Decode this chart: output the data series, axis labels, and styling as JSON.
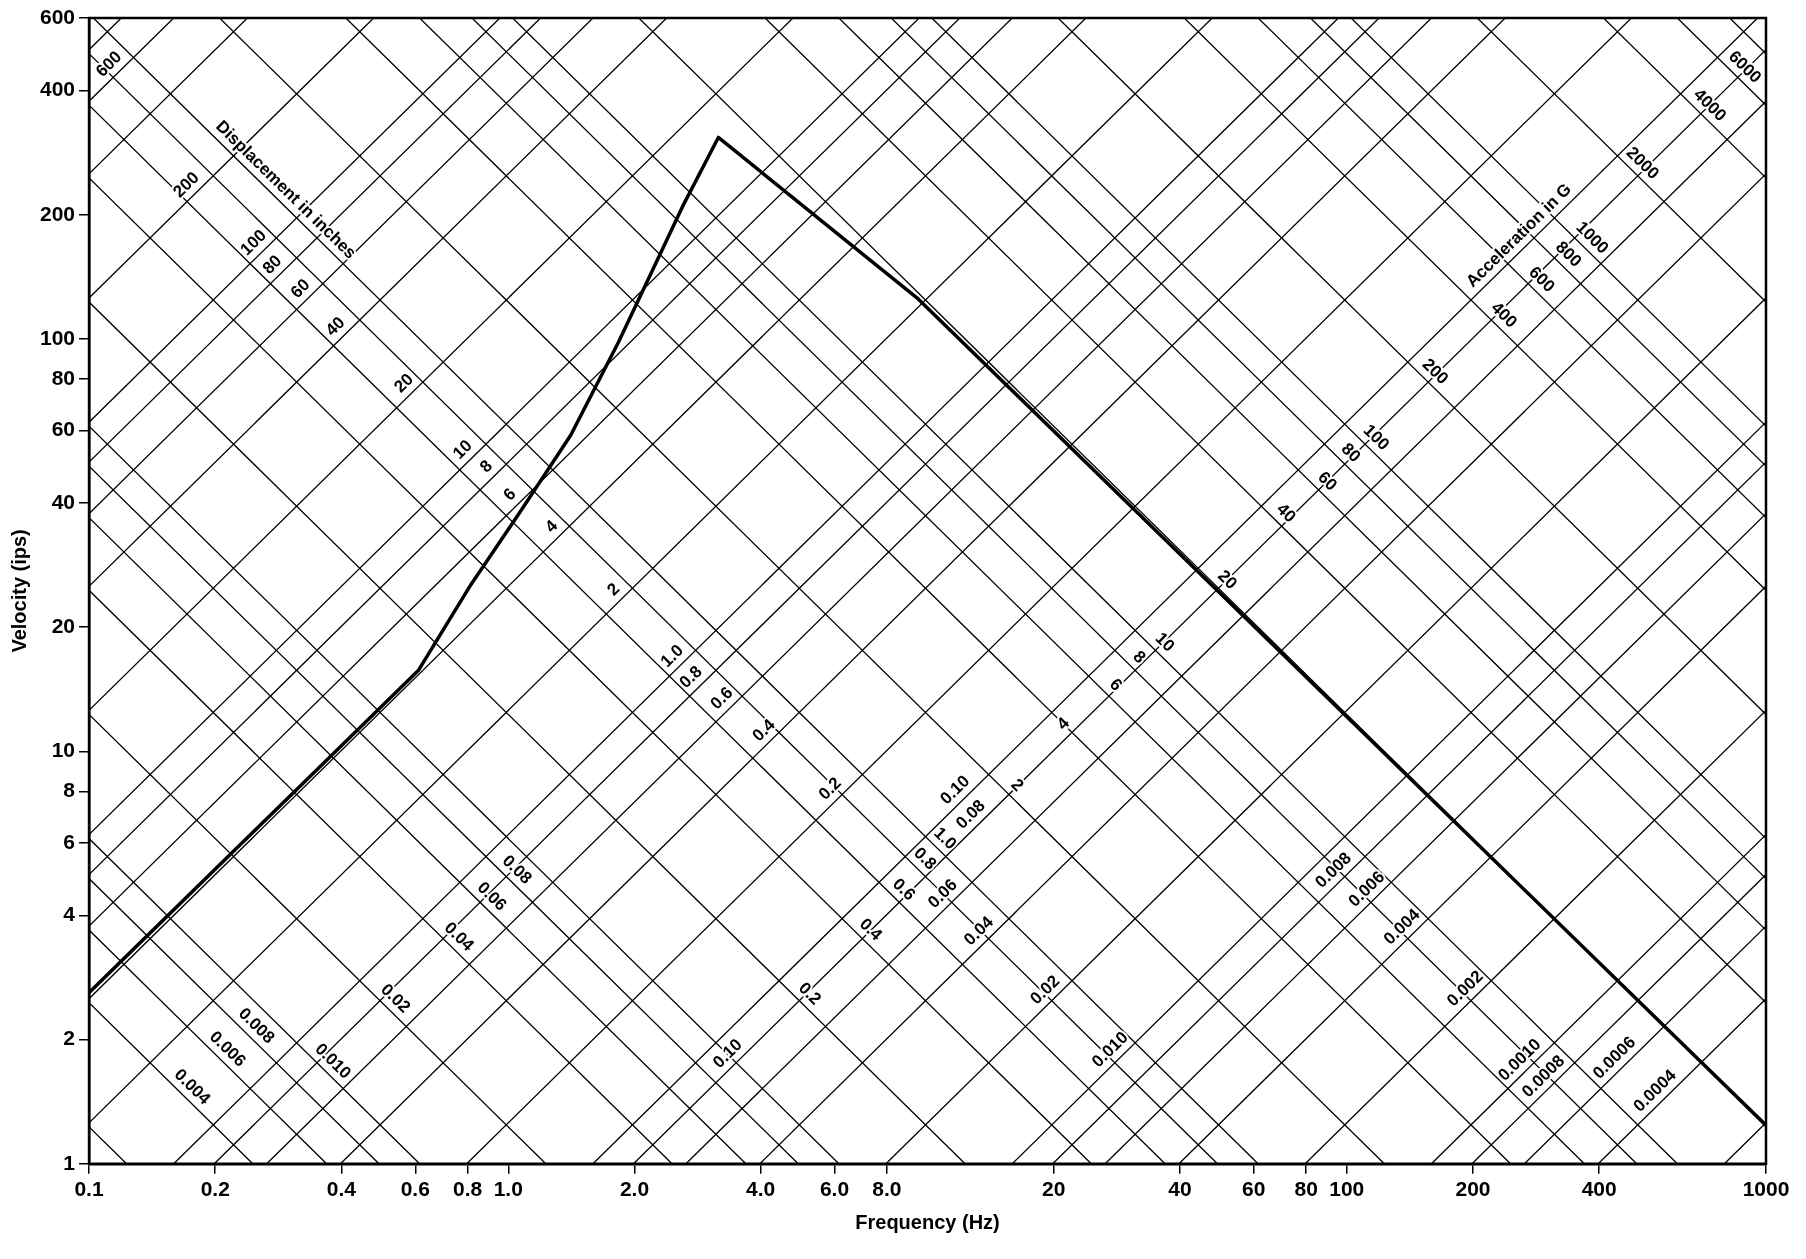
{
  "chart_data": {
    "type": "line",
    "xlabel": "Frequency (Hz)",
    "ylabel": "Velocity (ips)",
    "log": "xy",
    "grid": false,
    "legend": false,
    "marker": "none",
    "line_style": "solid",
    "xlim": [
      0.1,
      1000
    ],
    "ylim": [
      1,
      600
    ],
    "xticks": [
      0.1,
      0.2,
      0.4,
      {
        "value": 0.6,
        "label": "0.6"
      },
      {
        "value": 0.8,
        "label": "0.8"
      },
      {
        "value": 1,
        "label": "1.0"
      },
      {
        "value": 2,
        "label": "2.0"
      },
      {
        "value": 4,
        "label": "4.0"
      },
      {
        "value": 6,
        "label": "6.0"
      },
      {
        "value": 8,
        "label": "8.0"
      },
      20,
      40,
      60,
      80,
      100,
      200,
      400,
      1000
    ],
    "yticks": [
      1,
      2,
      4,
      6,
      8,
      10,
      20,
      40,
      60,
      80,
      100,
      200,
      400,
      600
    ],
    "series": [
      {
        "color": "#000000",
        "x": [
          0.1,
          0.61,
          0.815,
          1.055,
          1.41,
          1.83,
          2.62,
          3.17,
          9.5,
          1000
        ],
        "values": [
          2.6,
          15.7,
          25.4,
          37.4,
          58.5,
          98,
          212,
          308,
          125,
          1.24
        ]
      },
      {
        "color": "#000000",
        "x": [
          795.8,
          1000
        ],
        "values": [
          1,
          1.257
        ]
      },
      {
        "color": "#000000",
        "x": [
          397.9,
          1000
        ],
        "values": [
          1,
          2.513
        ]
      },
      {
        "color": "#000000",
        "x": [
          265.3,
          1000
        ],
        "values": [
          1,
          3.77
        ]
      },
      {
        "color": "#000000",
        "x": [
          198.9,
          1000
        ],
        "values": [
          1,
          5.027
        ]
      },
      {
        "color": "#000000",
        "x": [
          159.2,
          1000
        ],
        "values": [
          1,
          6.283
        ]
      },
      {
        "color": "#000000",
        "x": [
          79.58,
          1000
        ],
        "values": [
          1,
          12.57
        ]
      },
      {
        "color": "#000000",
        "x": [
          39.79,
          1000
        ],
        "values": [
          1,
          25.13
        ]
      },
      {
        "color": "#000000",
        "x": [
          26.53,
          1000
        ],
        "values": [
          1,
          37.7
        ]
      },
      {
        "color": "#000000",
        "x": [
          19.89,
          1000
        ],
        "values": [
          1,
          50.27
        ]
      },
      {
        "color": "#000000",
        "x": [
          15.92,
          1000
        ],
        "values": [
          1,
          62.83
        ]
      },
      {
        "color": "#000000",
        "x": [
          7.958,
          1000
        ],
        "values": [
          1,
          125.7
        ]
      },
      {
        "color": "#000000",
        "x": [
          3.979,
          1000
        ],
        "values": [
          1,
          251.3
        ]
      },
      {
        "color": "#000000",
        "x": [
          2.653,
          1000
        ],
        "values": [
          1,
          377.0
        ]
      },
      {
        "color": "#000000",
        "x": [
          1.989,
          1000
        ],
        "values": [
          1,
          502.7
        ]
      },
      {
        "color": "#000000",
        "x": [
          1.592,
          954.9
        ],
        "values": [
          1,
          600
        ]
      },
      {
        "color": "#000000",
        "x": [
          0.7958,
          477.5
        ],
        "values": [
          1,
          600
        ]
      },
      {
        "color": "#000000",
        "x": [
          0.3979,
          238.7
        ],
        "values": [
          1,
          600
        ]
      },
      {
        "color": "#000000",
        "x": [
          0.2653,
          159.2
        ],
        "values": [
          1,
          600
        ]
      },
      {
        "color": "#000000",
        "x": [
          0.1989,
          119.4
        ],
        "values": [
          1,
          600
        ]
      },
      {
        "color": "#000000",
        "x": [
          0.1592,
          95.49
        ],
        "values": [
          1,
          600
        ]
      },
      {
        "color": "#000000",
        "x": [
          0.1,
          47.75
        ],
        "values": [
          1.257,
          600
        ]
      },
      {
        "color": "#000000",
        "x": [
          0.1,
          23.87
        ],
        "values": [
          2.513,
          600
        ]
      },
      {
        "color": "#000000",
        "x": [
          0.1,
          15.92
        ],
        "values": [
          3.77,
          600
        ]
      },
      {
        "color": "#000000",
        "x": [
          0.1,
          11.94
        ],
        "values": [
          5.027,
          600
        ]
      },
      {
        "color": "#000000",
        "x": [
          0.1,
          9.549
        ],
        "values": [
          6.283,
          600
        ]
      },
      {
        "color": "#000000",
        "x": [
          0.1,
          4.775
        ],
        "values": [
          12.57,
          600
        ]
      },
      {
        "color": "#000000",
        "x": [
          0.1,
          2.387
        ],
        "values": [
          25.13,
          600
        ]
      },
      {
        "color": "#000000",
        "x": [
          0.1,
          1.592
        ],
        "values": [
          37.7,
          600
        ]
      },
      {
        "color": "#000000",
        "x": [
          0.1,
          1.194
        ],
        "values": [
          50.27,
          600
        ]
      },
      {
        "color": "#000000",
        "x": [
          0.1,
          0.9549
        ],
        "values": [
          62.83,
          600
        ]
      },
      {
        "color": "#000000",
        "x": [
          0.1,
          0.4775
        ],
        "values": [
          125.7,
          600
        ]
      },
      {
        "color": "#000000",
        "x": [
          0.1,
          0.2387
        ],
        "values": [
          251.3,
          600
        ]
      },
      {
        "color": "#000000",
        "x": [
          0.1,
          0.1592
        ],
        "values": [
          377.0,
          600
        ]
      },
      {
        "color": "#000000",
        "x": [
          0.1,
          0.1194
        ],
        "values": [
          502.7,
          600
        ]
      },
      {
        "color": "#000000",
        "x": [
          0.1,
          0.1229
        ],
        "values": [
          1.229,
          1
        ]
      },
      {
        "color": "#000000",
        "x": [
          0.1,
          0.2458
        ],
        "values": [
          2.458,
          1
        ]
      },
      {
        "color": "#000000",
        "x": [
          0.1,
          0.3687
        ],
        "values": [
          3.687,
          1
        ]
      },
      {
        "color": "#000000",
        "x": [
          0.1,
          0.4916
        ],
        "values": [
          4.916,
          1
        ]
      },
      {
        "color": "#000000",
        "x": [
          0.1,
          0.6145
        ],
        "values": [
          6.145,
          1
        ]
      },
      {
        "color": "#000000",
        "x": [
          0.1,
          1.229
        ],
        "values": [
          12.29,
          1
        ]
      },
      {
        "color": "#000000",
        "x": [
          0.1,
          2.458
        ],
        "values": [
          24.58,
          1
        ]
      },
      {
        "color": "#000000",
        "x": [
          0.1,
          3.687
        ],
        "values": [
          36.87,
          1
        ]
      },
      {
        "color": "#000000",
        "x": [
          0.1,
          4.916
        ],
        "values": [
          49.16,
          1
        ]
      },
      {
        "color": "#000000",
        "x": [
          0.1,
          6.145
        ],
        "values": [
          61.45,
          1
        ]
      },
      {
        "color": "#000000",
        "x": [
          0.1,
          12.29
        ],
        "values": [
          122.9,
          1
        ]
      },
      {
        "color": "#000000",
        "x": [
          0.1,
          24.58
        ],
        "values": [
          245.8,
          1
        ]
      },
      {
        "color": "#000000",
        "x": [
          0.1,
          36.87
        ],
        "values": [
          368.7,
          1
        ]
      },
      {
        "color": "#000000",
        "x": [
          0.1,
          49.16
        ],
        "values": [
          491.6,
          1
        ]
      },
      {
        "color": "#000000",
        "x": [
          0.1024,
          61.45
        ],
        "values": [
          600,
          1
        ]
      },
      {
        "color": "#000000",
        "x": [
          0.2048,
          122.9
        ],
        "values": [
          600,
          1
        ]
      },
      {
        "color": "#000000",
        "x": [
          0.4097,
          245.8
        ],
        "values": [
          600,
          1
        ]
      },
      {
        "color": "#000000",
        "x": [
          0.6145,
          368.7
        ],
        "values": [
          600,
          1
        ]
      },
      {
        "color": "#000000",
        "x": [
          0.8193,
          491.6
        ],
        "values": [
          600,
          1
        ]
      },
      {
        "color": "#000000",
        "x": [
          1.024,
          614.5
        ],
        "values": [
          600,
          1
        ]
      },
      {
        "color": "#000000",
        "x": [
          2.048,
          1000
        ],
        "values": [
          600,
          1.229
        ]
      },
      {
        "color": "#000000",
        "x": [
          4.097,
          1000
        ],
        "values": [
          600,
          2.458
        ]
      },
      {
        "color": "#000000",
        "x": [
          6.145,
          1000
        ],
        "values": [
          600,
          3.687
        ]
      },
      {
        "color": "#000000",
        "x": [
          8.193,
          1000
        ],
        "values": [
          600,
          4.916
        ]
      },
      {
        "color": "#000000",
        "x": [
          10.24,
          1000
        ],
        "values": [
          600,
          6.145
        ]
      },
      {
        "color": "#000000",
        "x": [
          20.48,
          1000
        ],
        "values": [
          600,
          12.29
        ]
      },
      {
        "color": "#000000",
        "x": [
          40.97,
          1000
        ],
        "values": [
          600,
          24.58
        ]
      },
      {
        "color": "#000000",
        "x": [
          61.45,
          1000
        ],
        "values": [
          600,
          36.87
        ]
      },
      {
        "color": "#000000",
        "x": [
          81.93,
          1000
        ],
        "values": [
          600,
          49.16
        ]
      },
      {
        "color": "#000000",
        "x": [
          102.4,
          1000
        ],
        "values": [
          600,
          61.45
        ]
      },
      {
        "color": "#000000",
        "x": [
          204.8,
          1000
        ],
        "values": [
          600,
          122.9
        ]
      },
      {
        "color": "#000000",
        "x": [
          409.7,
          1000
        ],
        "values": [
          600,
          245.8
        ]
      },
      {
        "color": "#000000",
        "x": [
          614.5,
          1000
        ],
        "values": [
          600,
          368.7
        ]
      },
      {
        "color": "#000000",
        "x": [
          819.3,
          1000
        ],
        "values": [
          600,
          491.6
        ]
      }
    ],
    "annotations": [
      {
        "text": "Displacement in inches",
        "x": 0.281,
        "y": 218.7
      },
      {
        "text": "Acceleration in G",
        "x": 270,
        "y": 169.6
      },
      {
        "text": "600",
        "x": 0.117,
        "y": 441
      },
      {
        "text": "200",
        "x": 0.179,
        "y": 225
      },
      {
        "text": "100",
        "x": 0.259,
        "y": 163
      },
      {
        "text": "80",
        "x": 0.287,
        "y": 144
      },
      {
        "text": "60",
        "x": 0.335,
        "y": 126
      },
      {
        "text": "40",
        "x": 0.406,
        "y": 102
      },
      {
        "text": "20",
        "x": 0.591,
        "y": 74.3
      },
      {
        "text": "10",
        "x": 0.817,
        "y": 51.3
      },
      {
        "text": "8",
        "x": 0.93,
        "y": 46.7
      },
      {
        "text": "6",
        "x": 1.058,
        "y": 39.9
      },
      {
        "text": "4",
        "x": 1.33,
        "y": 33.4
      },
      {
        "text": "2",
        "x": 1.87,
        "y": 23.5
      },
      {
        "text": "1.0",
        "x": 2.58,
        "y": 16.2
      },
      {
        "text": "0.8",
        "x": 2.86,
        "y": 14.4
      },
      {
        "text": "0.6",
        "x": 3.39,
        "y": 12.8
      },
      {
        "text": "0.4",
        "x": 4.27,
        "y": 10.7
      },
      {
        "text": "0.2",
        "x": 6.14,
        "y": 7.72
      },
      {
        "text": "0.10",
        "x": 12.2,
        "y": 7.67
      },
      {
        "text": "0.08",
        "x": 13.3,
        "y": 6.69
      },
      {
        "text": "2",
        "x": 15.6,
        "y": 7.88
      },
      {
        "text": "1.0",
        "x": 10.5,
        "y": 5.85
      },
      {
        "text": "0.8",
        "x": 9.4,
        "y": 5.23
      },
      {
        "text": "0.06",
        "x": 11.4,
        "y": 4.3
      },
      {
        "text": "0.6",
        "x": 8.37,
        "y": 4.4
      },
      {
        "text": "0.4",
        "x": 6.98,
        "y": 3.52
      },
      {
        "text": "0.04",
        "x": 13.9,
        "y": 3.49
      },
      {
        "text": "0.2",
        "x": 4.99,
        "y": 2.46
      },
      {
        "text": "0.10",
        "x": 3.5,
        "y": 1.76
      },
      {
        "text": "0.02",
        "x": 20,
        "y": 2.51
      },
      {
        "text": "0.010",
        "x": 28.6,
        "y": 1.8
      },
      {
        "text": "4",
        "x": 22.1,
        "y": 11.1
      },
      {
        "text": "6",
        "x": 26.8,
        "y": 13.8
      },
      {
        "text": "8",
        "x": 30.5,
        "y": 16.1
      },
      {
        "text": "10",
        "x": 35.1,
        "y": 17.5
      },
      {
        "text": "20",
        "x": 49.5,
        "y": 24.8
      },
      {
        "text": "40",
        "x": 68.3,
        "y": 36.0
      },
      {
        "text": "60",
        "x": 85.7,
        "y": 43.0
      },
      {
        "text": "80",
        "x": 97.5,
        "y": 50.4
      },
      {
        "text": "100",
        "x": 112,
        "y": 54.9
      },
      {
        "text": "200",
        "x": 155,
        "y": 79.3
      },
      {
        "text": "400",
        "x": 226,
        "y": 108.8
      },
      {
        "text": "600",
        "x": 278,
        "y": 132.6
      },
      {
        "text": "800",
        "x": 322,
        "y": 152.7
      },
      {
        "text": "1000",
        "x": 367,
        "y": 167.4
      },
      {
        "text": "2000",
        "x": 484,
        "y": 253.9
      },
      {
        "text": "4000",
        "x": 700,
        "y": 351.1
      },
      {
        "text": "6000",
        "x": 849,
        "y": 434.3
      },
      {
        "text": "0.004",
        "x": 0.168,
        "y": 1.463
      },
      {
        "text": "0.006",
        "x": 0.204,
        "y": 1.807
      },
      {
        "text": "0.008",
        "x": 0.239,
        "y": 2.057
      },
      {
        "text": "0.010",
        "x": 0.364,
        "y": 1.688
      },
      {
        "text": "0.02",
        "x": 0.513,
        "y": 2.396
      },
      {
        "text": "0.04",
        "x": 0.727,
        "y": 3.381
      },
      {
        "text": "0.06",
        "x": 0.871,
        "y": 4.233
      },
      {
        "text": "0.08",
        "x": 1.0,
        "y": 4.916
      },
      {
        "text": "0.008",
        "x": 97.5,
        "y": 4.9
      },
      {
        "text": "0.006",
        "x": 117,
        "y": 4.41
      },
      {
        "text": "0.004",
        "x": 142,
        "y": 3.57
      },
      {
        "text": "0.002",
        "x": 201,
        "y": 2.53
      },
      {
        "text": "0.0010",
        "x": 271,
        "y": 1.7
      },
      {
        "text": "0.0008",
        "x": 309,
        "y": 1.55
      },
      {
        "text": "0.0006",
        "x": 456,
        "y": 1.72
      },
      {
        "text": "0.0004",
        "x": 570,
        "y": 1.43
      }
    ]
  }
}
